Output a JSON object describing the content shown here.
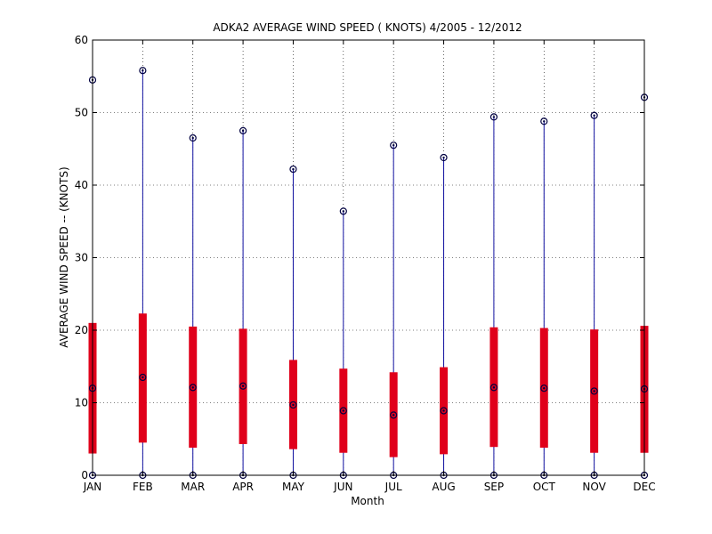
{
  "chart_data": {
    "type": "box",
    "title": "ADKA2  AVERAGE WIND SPEED ( KNOTS) 4/2005 - 12/2012",
    "xlabel": "Month",
    "ylabel": "AVERAGE WIND SPEED -- (KNOTS)",
    "ylim": [
      0,
      60
    ],
    "yticks": [
      "0",
      "10",
      "20",
      "30",
      "40",
      "50",
      "60"
    ],
    "grid": true,
    "categories": [
      "JAN",
      "FEB",
      "MAR",
      "APR",
      "MAY",
      "JUN",
      "JUL",
      "AUG",
      "SEP",
      "OCT",
      "NOV",
      "DEC"
    ],
    "series": [
      {
        "min": [
          0,
          0,
          0,
          0,
          0,
          0,
          0,
          0,
          0,
          0,
          0,
          0
        ],
        "q1": [
          3.0,
          4.5,
          3.8,
          4.3,
          3.6,
          3.1,
          2.5,
          2.9,
          3.9,
          3.8,
          3.1,
          3.1
        ],
        "median": [
          12.0,
          13.5,
          12.1,
          12.3,
          9.7,
          8.9,
          8.3,
          8.9,
          12.1,
          12.0,
          11.6,
          11.9
        ],
        "q3": [
          21.0,
          22.3,
          20.5,
          20.2,
          15.9,
          14.7,
          14.2,
          14.9,
          20.4,
          20.3,
          20.1,
          20.6
        ],
        "max": [
          54.5,
          55.8,
          46.5,
          47.5,
          42.2,
          36.4,
          45.5,
          43.8,
          49.4,
          48.8,
          49.6,
          52.1
        ]
      }
    ],
    "colors": {
      "whisker": "#1010a0",
      "box": "#e0001b",
      "marker": "#000040"
    }
  }
}
